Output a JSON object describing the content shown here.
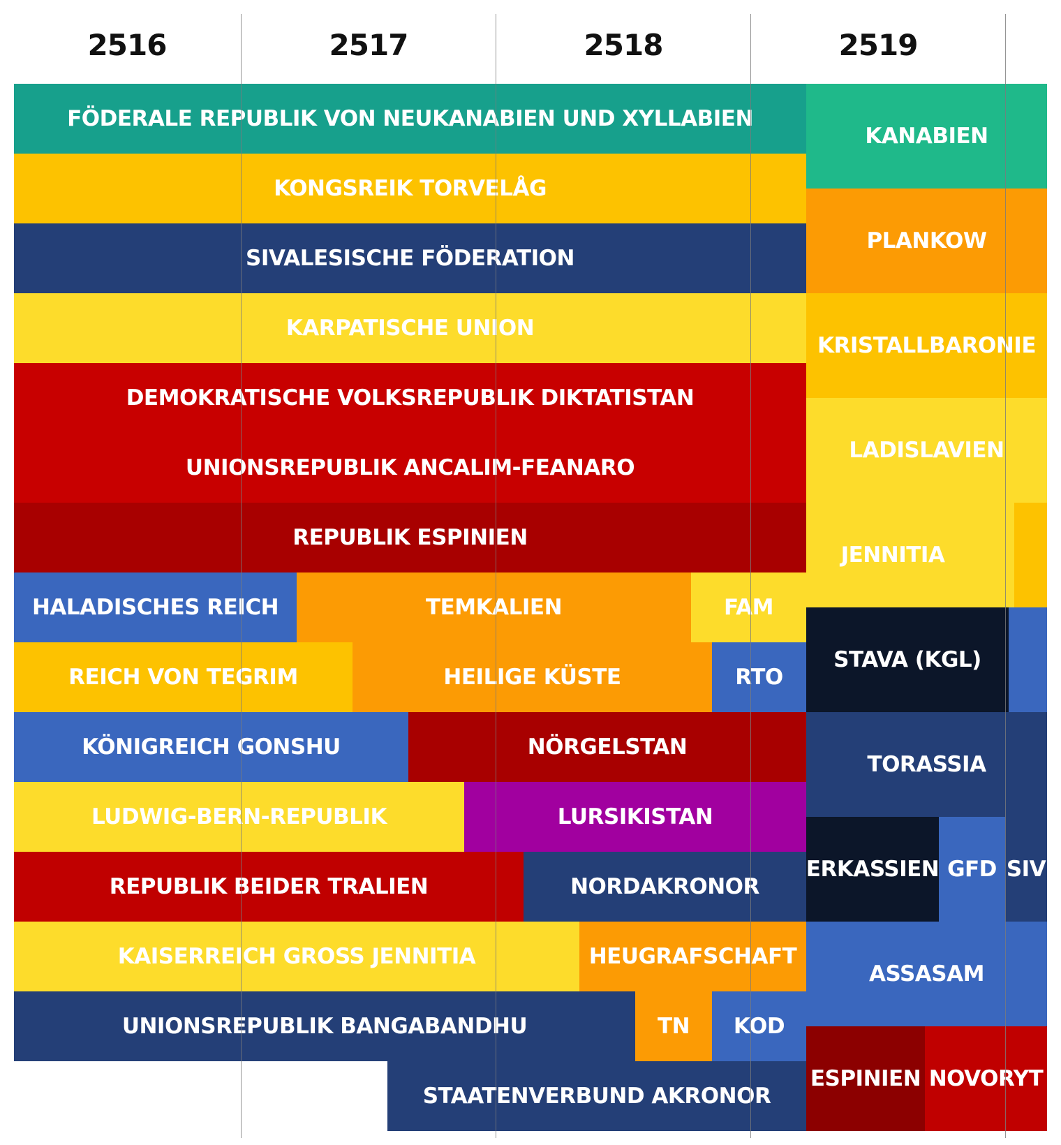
{
  "years": [
    "2516",
    "2517",
    "2518",
    "2519"
  ],
  "colors": {
    "teal": "#17a08c",
    "green_teal": "#1fb98a",
    "amber": "#fdc200",
    "orange": "#fc9b04",
    "yellow": "#fddc2b",
    "navy": "#243f77",
    "dark_navy": "#0c1629",
    "blue": "#3a67be",
    "red": "#c80000",
    "dark_red": "#a80000",
    "deep_red": "#8c0000",
    "bright_red": "#c00000",
    "purple": "#a1009f"
  },
  "blocks": [
    {
      "name": "Föderale Republik von Neukanabien und Xyllabien",
      "color": "teal"
    },
    {
      "name": "Kongsreik Torvelåg",
      "color": "amber"
    },
    {
      "name": "Sivalesische Föderation",
      "color": "navy"
    },
    {
      "name": "Karpatische Union",
      "color": "yellow"
    },
    {
      "name": "Demokratische Volksrepublik Diktatistan",
      "color": "red"
    },
    {
      "name": "Unionsrepublik Ancalim-Feanaro",
      "color": "red"
    },
    {
      "name": "Republik Espinien",
      "color": "dark_red"
    },
    {
      "name": "Haladisches Reich",
      "color": "blue"
    },
    {
      "name": "Temkalien",
      "color": "orange"
    },
    {
      "name": "FAM",
      "color": "yellow"
    },
    {
      "name": "Reich von Tegrim",
      "color": "amber"
    },
    {
      "name": "Heilige Küste",
      "color": "orange"
    },
    {
      "name": "RTO",
      "color": "blue"
    },
    {
      "name": "Königreich Gonshu",
      "color": "blue"
    },
    {
      "name": "Nörgelstan",
      "color": "dark_red"
    },
    {
      "name": "Ludwig-Bern-Republik",
      "color": "yellow"
    },
    {
      "name": "Lursikistan",
      "color": "purple"
    },
    {
      "name": "Republik beider Tralien",
      "color": "bright_red"
    },
    {
      "name": "Nordakronor",
      "color": "navy"
    },
    {
      "name": "Kaiserreich Groß Jennitia",
      "color": "yellow"
    },
    {
      "name": "Heugrafschaft",
      "color": "orange"
    },
    {
      "name": "Unionsrepublik Bangabandhu",
      "color": "navy"
    },
    {
      "name": "TN",
      "color": "orange"
    },
    {
      "name": "KOD",
      "color": "blue"
    },
    {
      "name": "Staatenverbund Akronor",
      "color": "navy"
    },
    {
      "name": "Kanabien",
      "color": "green_teal"
    },
    {
      "name": "Plankow",
      "color": "orange"
    },
    {
      "name": "Kristallbaronie",
      "color": "amber"
    },
    {
      "name": "Ladislavien",
      "color": "yellow"
    },
    {
      "name": "Jennitia",
      "color": "yellow"
    },
    {
      "name": "",
      "color": "amber"
    },
    {
      "name": "Stava (KGL)",
      "color": "dark_navy"
    },
    {
      "name": "",
      "color": "blue"
    },
    {
      "name": "Torassia",
      "color": "navy"
    },
    {
      "name": "Erkassien",
      "color": "dark_navy"
    },
    {
      "name": "GFD",
      "color": "blue"
    },
    {
      "name": "SIV",
      "color": "navy"
    },
    {
      "name": "Assasam",
      "color": "blue"
    },
    {
      "name": "Espinien",
      "color": "deep_red"
    },
    {
      "name": "Novoryt",
      "color": "bright_red"
    }
  ]
}
